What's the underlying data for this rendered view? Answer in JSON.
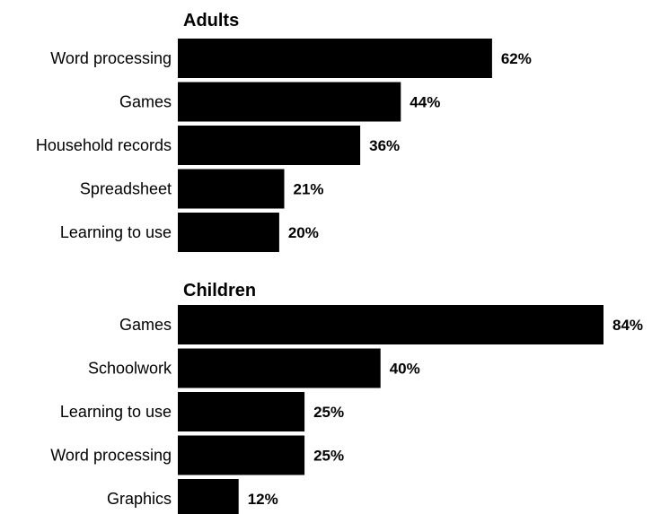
{
  "chart_data": [
    {
      "type": "bar",
      "orientation": "horizontal",
      "title": "Adults",
      "categories": [
        "Word processing",
        "Games",
        "Household records",
        "Spreadsheet",
        "Learning to use"
      ],
      "values": [
        62,
        44,
        36,
        21,
        20
      ],
      "value_labels": [
        "62%",
        "44%",
        "36%",
        "21%",
        "20%"
      ],
      "unit": "%",
      "xlim": [
        0,
        84
      ],
      "grid": false,
      "bar_color": "#000000"
    },
    {
      "type": "bar",
      "orientation": "horizontal",
      "title": "Children",
      "categories": [
        "Games",
        "Schoolwork",
        "Learning to use",
        "Word processing",
        "Graphics"
      ],
      "values": [
        84,
        40,
        25,
        25,
        12
      ],
      "value_labels": [
        "84%",
        "40%",
        "25%",
        "25%",
        "12%"
      ],
      "unit": "%",
      "xlim": [
        0,
        84
      ],
      "grid": false,
      "bar_color": "#000000"
    }
  ]
}
